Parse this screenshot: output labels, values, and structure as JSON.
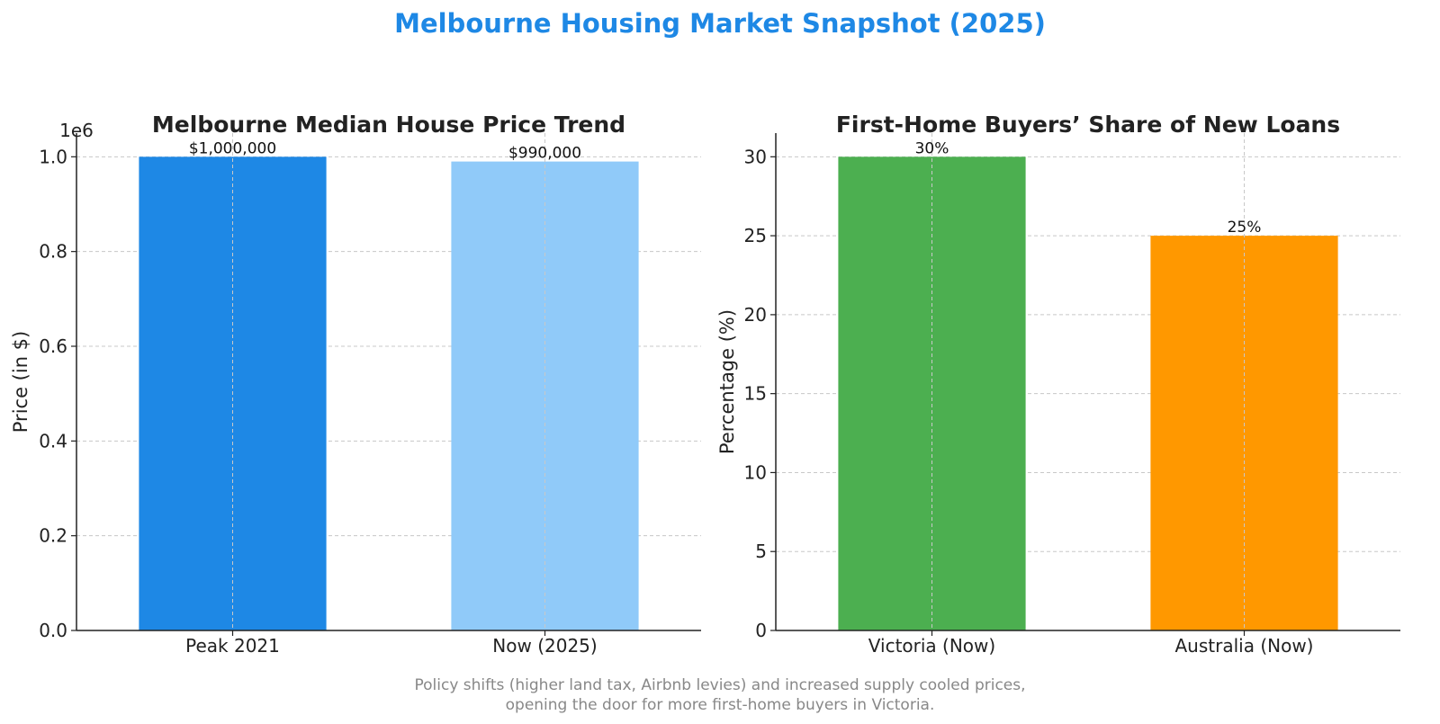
{
  "figure": {
    "title": "Melbourne Housing Market Snapshot (2025)",
    "title_color": "#1e88e5",
    "caption_lines": [
      "Policy shifts (higher land tax, Airbnb levies) and increased supply cooled prices,",
      "opening the door for more first-home buyers in Victoria."
    ]
  },
  "chart_data": [
    {
      "type": "bar",
      "title": "Melbourne Median House Price Trend",
      "categories": [
        "Peak 2021",
        "Now (2025)"
      ],
      "values": [
        1000000,
        990000
      ],
      "data_labels": [
        "$1,000,000",
        "$990,000"
      ],
      "colors": [
        "#1e88e5",
        "#90caf9"
      ],
      "xlabel": "",
      "ylabel": "Price (in $)",
      "ylim": [
        0,
        1050000
      ],
      "yticks": [
        0,
        200000,
        400000,
        600000,
        800000,
        1000000
      ],
      "ytick_labels": [
        "0.0",
        "0.2",
        "0.4",
        "0.6",
        "0.8",
        "1.0"
      ],
      "offset_label": "1e6",
      "grid": true
    },
    {
      "type": "bar",
      "title": "First-Home Buyers’ Share of New Loans",
      "categories": [
        "Victoria (Now)",
        "Australia (Now)"
      ],
      "values": [
        30,
        25
      ],
      "data_labels": [
        "30%",
        "25%"
      ],
      "colors": [
        "#4caf50",
        "#ff9800"
      ],
      "xlabel": "",
      "ylabel": "Percentage (%)",
      "ylim": [
        0,
        31.5
      ],
      "yticks": [
        0,
        5,
        10,
        15,
        20,
        25,
        30
      ],
      "ytick_labels": [
        "0",
        "5",
        "10",
        "15",
        "20",
        "25",
        "30"
      ],
      "offset_label": "",
      "grid": true
    }
  ]
}
